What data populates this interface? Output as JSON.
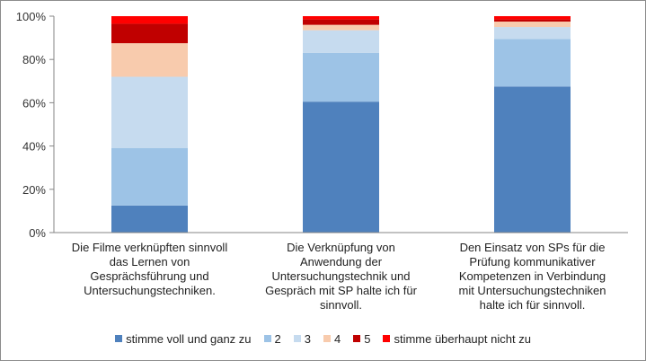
{
  "chart_data": {
    "type": "bar",
    "stacked": true,
    "categories": [
      "Die Filme verknüpften sinnvoll das Lernen von Gesprächsführung und Untersuchungstechniken.",
      "Die Verknüpfung von Anwendung der Untersuchungstechnik und Gespräch mit SP halte ich für sinnvoll.",
      "Den Einsatz von SPs für die Prüfung kommunikativer Kompetenzen in Verbindung mit Untersuchungstechniken halte ich für sinnvoll."
    ],
    "category_lines": [
      [
        "Die Filme verknüpften sinnvoll",
        "das Lernen von",
        "Gesprächsführung und",
        "Untersuchungstechniken."
      ],
      [
        "Die Verknüpfung von",
        "Anwendung der",
        "Untersuchungstechnik und",
        "Gespräch mit SP halte ich für",
        "sinnvoll."
      ],
      [
        "Den Einsatz von SPs für die",
        "Prüfung kommunikativer",
        "Kompetenzen in Verbindung",
        "mit Untersuchungstechniken",
        "halte ich für sinnvoll."
      ]
    ],
    "series": [
      {
        "name": "stimme voll und ganz zu",
        "color": "#4f81bd",
        "values": [
          12.5,
          60.5,
          67.5
        ]
      },
      {
        "name": "2",
        "color": "#9dc3e6",
        "values": [
          26.5,
          22.5,
          22.0
        ]
      },
      {
        "name": "3",
        "color": "#c6dbef",
        "values": [
          33.0,
          10.5,
          5.5
        ]
      },
      {
        "name": "4",
        "color": "#f8cbad",
        "values": [
          15.5,
          2.5,
          2.5
        ]
      },
      {
        "name": "5",
        "color": "#c00000",
        "values": [
          9.0,
          2.5,
          1.0
        ]
      },
      {
        "name": "stimme überhaupt nicht zu",
        "color": "#ff0000",
        "values": [
          3.5,
          1.5,
          1.5
        ]
      }
    ],
    "yticks": [
      "0%",
      "20%",
      "40%",
      "60%",
      "80%",
      "100%"
    ],
    "ylim": [
      0,
      100
    ],
    "grid": false,
    "legend_position": "bottom"
  }
}
